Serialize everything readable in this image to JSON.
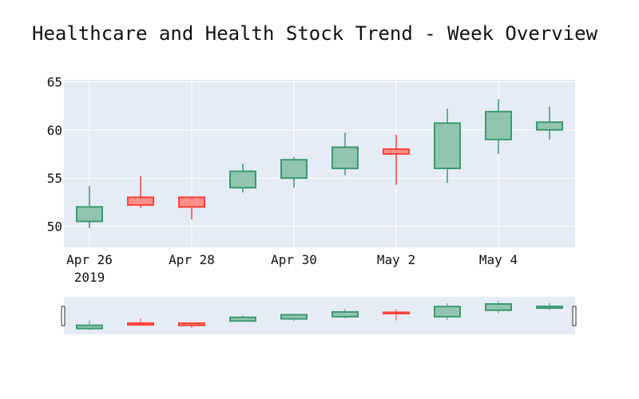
{
  "chart_data": {
    "type": "candlestick",
    "title": "Healthcare and Health Stock Trend - Week Overview",
    "x_tick_labels": [
      "Apr 26",
      "Apr 28",
      "Apr 30",
      "May 2",
      "May 4"
    ],
    "x_tick_dates": [
      "2019-04-26",
      "2019-04-28",
      "2019-04-30",
      "2019-05-02",
      "2019-05-04"
    ],
    "x_year_label": "2019",
    "y_ticks": [
      50,
      55,
      60,
      65
    ],
    "ylim": [
      47.8,
      65.2
    ],
    "xlim": [
      "2019-04-25 12:00",
      "2019-05-05 12:00"
    ],
    "grid": true,
    "rangeslider": true,
    "colors": {
      "plot_bg": "#e5ecf6",
      "increasing_line": "#3d9970",
      "increasing_fill": "#92c5b0",
      "decreasing_line": "#ff4136",
      "decreasing_fill": "#ff9089",
      "grid": "#ffffff"
    },
    "points": [
      {
        "date": "2019-04-26",
        "open": 50.5,
        "high": 54.2,
        "low": 49.8,
        "close": 52.0
      },
      {
        "date": "2019-04-27",
        "open": 53.0,
        "high": 55.2,
        "low": 51.9,
        "close": 52.2
      },
      {
        "date": "2019-04-28",
        "open": 53.0,
        "high": 53.0,
        "low": 50.7,
        "close": 52.0
      },
      {
        "date": "2019-04-29",
        "open": 54.0,
        "high": 56.5,
        "low": 53.5,
        "close": 55.7
      },
      {
        "date": "2019-04-30",
        "open": 55.0,
        "high": 57.2,
        "low": 54.0,
        "close": 56.9
      },
      {
        "date": "2019-05-01",
        "open": 56.0,
        "high": 59.7,
        "low": 55.3,
        "close": 58.2
      },
      {
        "date": "2019-05-02",
        "open": 58.0,
        "high": 59.5,
        "low": 54.3,
        "close": 57.5
      },
      {
        "date": "2019-05-03",
        "open": 56.0,
        "high": 62.2,
        "low": 54.5,
        "close": 60.7
      },
      {
        "date": "2019-05-04",
        "open": 59.0,
        "high": 63.2,
        "low": 57.5,
        "close": 61.9
      },
      {
        "date": "2019-05-05",
        "open": 60.0,
        "high": 62.4,
        "low": 59.0,
        "close": 60.8
      }
    ]
  }
}
